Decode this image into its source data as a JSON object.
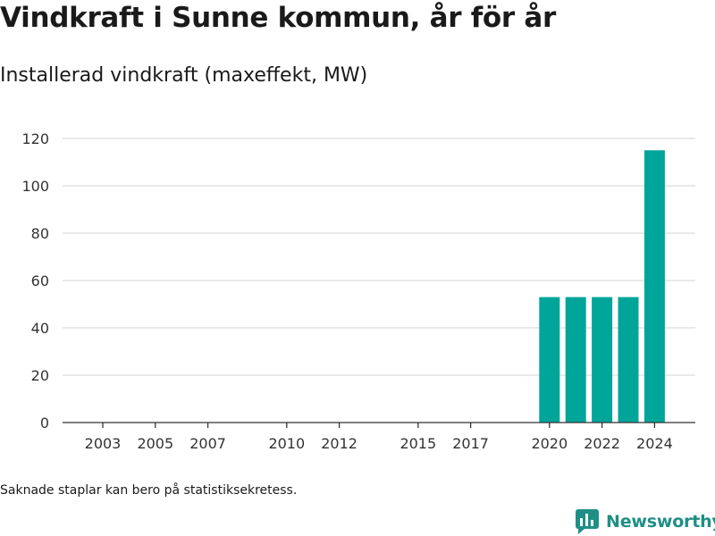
{
  "header": {
    "title": "Vindkraft i Sunne kommun, år för år",
    "subtitle": "Installerad vindkraft (maxeffekt, MW)"
  },
  "footer": {
    "note": "Saknade staplar kan bero på statistiksekretess.",
    "brand": "Newsworthy"
  },
  "colors": {
    "bar": "#00a59a",
    "brand": "#1f8f86"
  },
  "chart_data": {
    "type": "bar",
    "title": "Vindkraft i Sunne kommun, år för år",
    "subtitle": "Installerad vindkraft (maxeffekt, MW)",
    "xlabel": "",
    "ylabel": "",
    "categories": [
      2003,
      2004,
      2005,
      2006,
      2007,
      2008,
      2009,
      2010,
      2011,
      2012,
      2013,
      2014,
      2015,
      2016,
      2017,
      2018,
      2019,
      2020,
      2021,
      2022,
      2023,
      2024
    ],
    "values": [
      0,
      0,
      0,
      0,
      0,
      0,
      0,
      0,
      0,
      0,
      0,
      0,
      0,
      0,
      0,
      0,
      0,
      53,
      53,
      53,
      53,
      115
    ],
    "x_ticks": [
      2003,
      2005,
      2007,
      2010,
      2012,
      2015,
      2017,
      2020,
      2022,
      2024
    ],
    "y_ticks": [
      0,
      20,
      40,
      60,
      80,
      100,
      120
    ],
    "ylim": [
      0,
      120
    ],
    "grid": "horizontal",
    "legend": "none"
  }
}
